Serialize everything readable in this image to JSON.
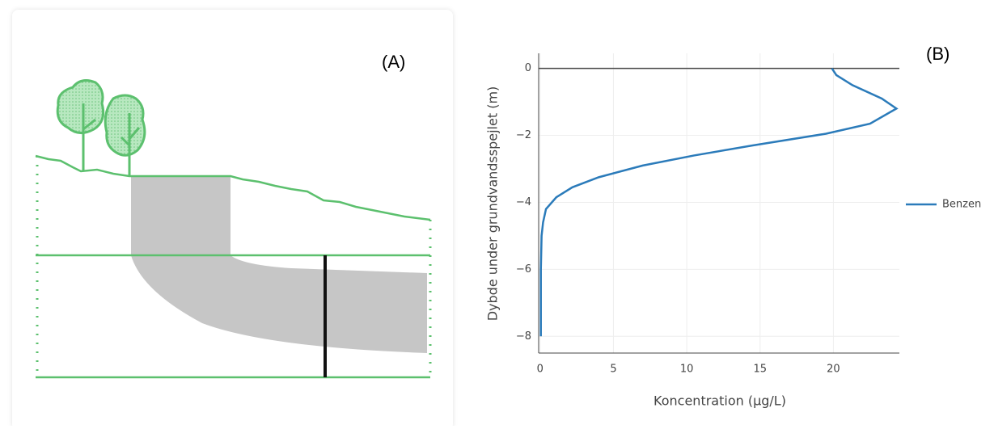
{
  "panel_a": {
    "label": "(A)"
  },
  "panel_b": {
    "label": "(B)"
  },
  "chart_data": {
    "type": "line",
    "x_label": "Koncentration (µg/L)",
    "y_label": "Dybde under grundvandsspejlet (m)",
    "series": [
      {
        "name": "Benzen",
        "color": "#2b7bba",
        "x": [
          19.9,
          20.2,
          21.3,
          23.3,
          24.3,
          22.5,
          19.5,
          14.5,
          10.5,
          7,
          4,
          2.2,
          1.1,
          0.4,
          0.2,
          0.1,
          0.05,
          0.05
        ],
        "values": [
          0,
          -0.2,
          -0.5,
          -0.9,
          -1.2,
          -1.65,
          -1.95,
          -2.3,
          -2.6,
          -2.9,
          -3.25,
          -3.55,
          -3.85,
          -4.2,
          -4.6,
          -5,
          -6,
          -8
        ]
      }
    ],
    "xlim": [
      -0.1,
      24.5
    ],
    "ylim": [
      -8.5,
      0.45
    ],
    "xticks": [
      0,
      5,
      10,
      15,
      20
    ],
    "yticks": [
      0,
      {
        "value": -2,
        "label": "−2"
      },
      {
        "value": -4,
        "label": "−4"
      },
      {
        "value": -6,
        "label": "−6"
      },
      {
        "value": -8,
        "label": "−8"
      }
    ],
    "grid": true,
    "zero_line": true
  }
}
